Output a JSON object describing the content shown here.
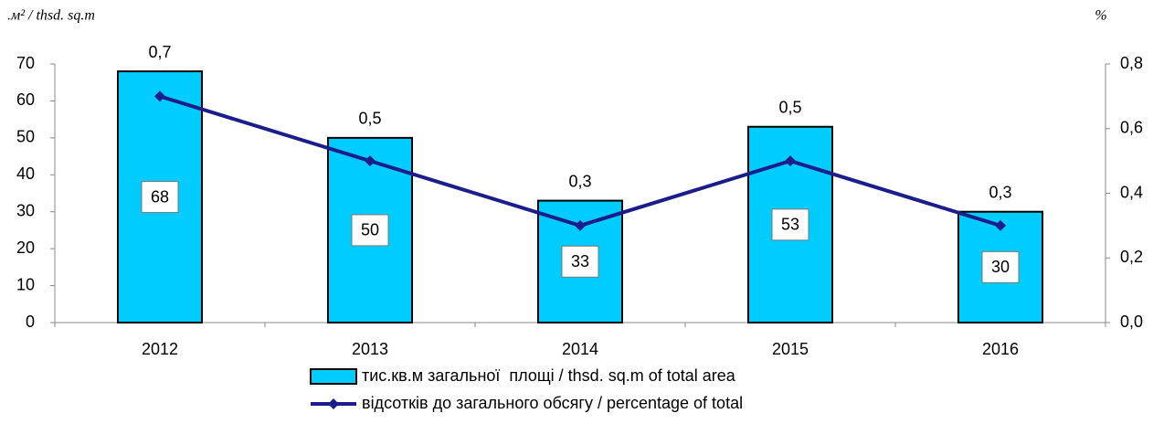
{
  "chart_data": {
    "type": "bar_line",
    "y_label": ".м² / thsd. sq.m",
    "y2_label": "%",
    "categories": [
      "2012",
      "2013",
      "2014",
      "2015",
      "2016"
    ],
    "series": [
      {
        "name": "тис.кв.м загальної  площі / thsd. sq.m of total area",
        "type": "bar",
        "color": "#00ccff",
        "values": [
          68,
          50,
          33,
          53,
          30
        ]
      },
      {
        "name": "відсотків до загального обсягу / percentage of total",
        "type": "line",
        "axis": "y2",
        "color": "#1c1c8c",
        "values": [
          0.7,
          0.5,
          0.3,
          0.5,
          0.3
        ],
        "value_labels": [
          "0,7",
          "0,5",
          "0,3",
          "0,5",
          "0,3"
        ]
      }
    ],
    "ylim": [
      0,
      70
    ],
    "yticks": [
      0,
      10,
      20,
      30,
      40,
      50,
      60,
      70
    ],
    "y2lim": [
      0,
      0.8
    ],
    "y2ticks": [
      {
        "value": 0,
        "label": "0,0"
      },
      {
        "value": 0.2,
        "label": "0,2"
      },
      {
        "value": 0.4,
        "label": "0,4"
      },
      {
        "value": 0.6,
        "label": "0,6"
      },
      {
        "value": 0.8,
        "label": "0,8"
      }
    ],
    "grid": false
  }
}
